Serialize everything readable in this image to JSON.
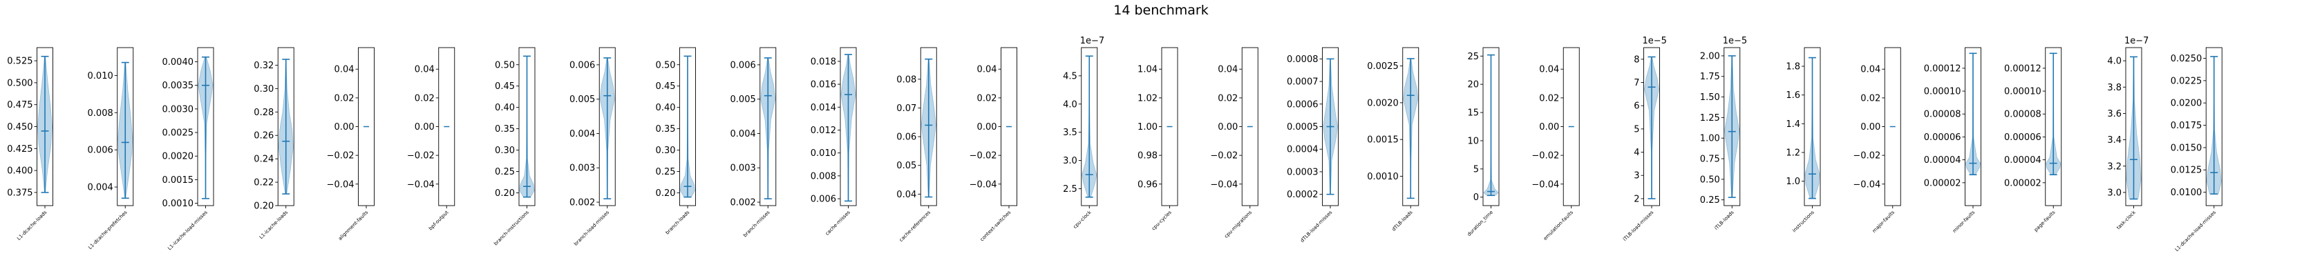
{
  "chart_data": {
    "type": "violin",
    "title": "14 benchmark",
    "colors": {
      "violin_fill": "#1f77b4",
      "line": "#1f77b4",
      "axis": "#000000"
    },
    "subplots": [
      {
        "label": "L1-dcache-loads",
        "ylim": [
          0.36,
          0.54
        ],
        "yticks": [
          "0.375",
          "0.400",
          "0.425",
          "0.450",
          "0.475",
          "0.500",
          "0.525"
        ],
        "min": 0.375,
        "max": 0.53,
        "mean": 0.445,
        "density": [
          [
            0.375,
            0.05
          ],
          [
            0.4,
            0.35
          ],
          [
            0.43,
            0.85
          ],
          [
            0.45,
            1.0
          ],
          [
            0.47,
            0.8
          ],
          [
            0.5,
            0.4
          ],
          [
            0.53,
            0.05
          ]
        ]
      },
      {
        "label": "L1-dcache-prefetches",
        "ylim": [
          0.003,
          0.0115
        ],
        "yticks": [
          "0.004",
          "0.006",
          "0.008",
          "0.010"
        ],
        "min": 0.0034,
        "max": 0.0107,
        "mean": 0.0064,
        "density": [
          [
            0.0034,
            0.05
          ],
          [
            0.0045,
            0.45
          ],
          [
            0.0058,
            0.9
          ],
          [
            0.0066,
            1.0
          ],
          [
            0.0078,
            0.75
          ],
          [
            0.0092,
            0.35
          ],
          [
            0.0107,
            0.05
          ]
        ]
      },
      {
        "label": "L1-icache-load-misses",
        "ylim": [
          0.00095,
          0.0043
        ],
        "yticks": [
          "0.0010",
          "0.0015",
          "0.0020",
          "0.0025",
          "0.0030",
          "0.0035",
          "0.0040"
        ],
        "min": 0.0011,
        "max": 0.0041,
        "mean": 0.0035,
        "density": [
          [
            0.0011,
            0.02
          ],
          [
            0.002,
            0.05
          ],
          [
            0.0027,
            0.15
          ],
          [
            0.0032,
            0.7
          ],
          [
            0.0035,
            1.0
          ],
          [
            0.0038,
            0.65
          ],
          [
            0.0041,
            0.1
          ]
        ]
      },
      {
        "label": "L1-icache-loads",
        "ylim": [
          0.2,
          0.335
        ],
        "yticks": [
          "0.20",
          "0.22",
          "0.24",
          "0.26",
          "0.28",
          "0.30",
          "0.32"
        ],
        "min": 0.21,
        "max": 0.325,
        "mean": 0.255,
        "density": [
          [
            0.21,
            0.1
          ],
          [
            0.23,
            0.6
          ],
          [
            0.25,
            1.0
          ],
          [
            0.265,
            0.85
          ],
          [
            0.28,
            0.45
          ],
          [
            0.3,
            0.15
          ],
          [
            0.325,
            0.03
          ]
        ]
      },
      {
        "label": "alignment-faults",
        "ylim": [
          -0.055,
          0.055
        ],
        "yticks": [
          "−0.04",
          "−0.02",
          "0.00",
          "0.02",
          "0.04"
        ],
        "constant": 0.0
      },
      {
        "label": "bpf-output",
        "ylim": [
          -0.055,
          0.055
        ],
        "yticks": [
          "−0.04",
          "−0.02",
          "0.00",
          "0.02",
          "0.04"
        ],
        "constant": 0.0
      },
      {
        "label": "branch-instructions",
        "ylim": [
          0.17,
          0.54
        ],
        "yticks": [
          "0.20",
          "0.25",
          "0.30",
          "0.35",
          "0.40",
          "0.45",
          "0.50"
        ],
        "min": 0.19,
        "max": 0.52,
        "mean": 0.215,
        "density": [
          [
            0.19,
            0.5
          ],
          [
            0.205,
            1.0
          ],
          [
            0.22,
            0.9
          ],
          [
            0.24,
            0.35
          ],
          [
            0.28,
            0.08
          ],
          [
            0.4,
            0.02
          ],
          [
            0.52,
            0.01
          ]
        ]
      },
      {
        "label": "branch-load-misses",
        "ylim": [
          0.0019,
          0.0065
        ],
        "yticks": [
          "0.002",
          "0.003",
          "0.004",
          "0.005",
          "0.006"
        ],
        "min": 0.0021,
        "max": 0.0062,
        "mean": 0.0051,
        "density": [
          [
            0.0021,
            0.02
          ],
          [
            0.0035,
            0.08
          ],
          [
            0.0044,
            0.4
          ],
          [
            0.005,
            1.0
          ],
          [
            0.0054,
            0.8
          ],
          [
            0.0058,
            0.35
          ],
          [
            0.0062,
            0.05
          ]
        ]
      },
      {
        "label": "branch-loads",
        "ylim": [
          0.17,
          0.54
        ],
        "yticks": [
          "0.20",
          "0.25",
          "0.30",
          "0.35",
          "0.40",
          "0.45",
          "0.50"
        ],
        "min": 0.19,
        "max": 0.52,
        "mean": 0.215,
        "density": [
          [
            0.19,
            0.5
          ],
          [
            0.205,
            1.0
          ],
          [
            0.22,
            0.9
          ],
          [
            0.24,
            0.35
          ],
          [
            0.28,
            0.08
          ],
          [
            0.4,
            0.02
          ],
          [
            0.52,
            0.01
          ]
        ]
      },
      {
        "label": "branch-misses",
        "ylim": [
          0.0019,
          0.0065
        ],
        "yticks": [
          "0.002",
          "0.003",
          "0.004",
          "0.005",
          "0.006"
        ],
        "min": 0.0021,
        "max": 0.0062,
        "mean": 0.0051,
        "density": [
          [
            0.0021,
            0.02
          ],
          [
            0.0035,
            0.08
          ],
          [
            0.0044,
            0.4
          ],
          [
            0.005,
            1.0
          ],
          [
            0.0054,
            0.8
          ],
          [
            0.0058,
            0.35
          ],
          [
            0.0062,
            0.05
          ]
        ]
      },
      {
        "label": "cache-misses",
        "ylim": [
          0.0054,
          0.0192
        ],
        "yticks": [
          "0.006",
          "0.008",
          "0.010",
          "0.012",
          "0.014",
          "0.016",
          "0.018"
        ],
        "min": 0.0058,
        "max": 0.0186,
        "mean": 0.0151,
        "density": [
          [
            0.0058,
            0.02
          ],
          [
            0.01,
            0.08
          ],
          [
            0.013,
            0.45
          ],
          [
            0.0151,
            1.0
          ],
          [
            0.0165,
            0.7
          ],
          [
            0.0176,
            0.3
          ],
          [
            0.0186,
            0.05
          ]
        ]
      },
      {
        "label": "cache-references",
        "ylim": [
          0.036,
          0.091
        ],
        "yticks": [
          "0.04",
          "0.05",
          "0.06",
          "0.07",
          "0.08"
        ],
        "min": 0.039,
        "max": 0.087,
        "mean": 0.064,
        "density": [
          [
            0.039,
            0.05
          ],
          [
            0.05,
            0.25
          ],
          [
            0.058,
            0.7
          ],
          [
            0.064,
            1.0
          ],
          [
            0.07,
            0.75
          ],
          [
            0.078,
            0.3
          ],
          [
            0.087,
            0.05
          ]
        ]
      },
      {
        "label": "context-switches",
        "ylim": [
          -0.055,
          0.055
        ],
        "yticks": [
          "−0.04",
          "−0.02",
          "0.00",
          "0.02",
          "0.04"
        ],
        "constant": 0.0
      },
      {
        "label": "cpu-clock",
        "ylim": [
          2.2,
          5.0
        ],
        "offset": "1e−7",
        "yticks": [
          "2.5",
          "3.0",
          "3.5",
          "4.0",
          "4.5"
        ],
        "min": 2.35,
        "max": 4.85,
        "mean": 2.75,
        "density": [
          [
            2.35,
            0.2
          ],
          [
            2.6,
            0.8
          ],
          [
            2.75,
            1.0
          ],
          [
            2.95,
            0.55
          ],
          [
            3.3,
            0.12
          ],
          [
            4.0,
            0.03
          ],
          [
            4.85,
            0.01
          ]
        ]
      },
      {
        "label": "cpu-cycles",
        "ylim": [
          0.945,
          1.055
        ],
        "yticks": [
          "0.96",
          "0.98",
          "1.00",
          "1.02",
          "1.04"
        ],
        "constant": 1.0
      },
      {
        "label": "cpu-migrations",
        "ylim": [
          -0.055,
          0.055
        ],
        "yticks": [
          "−0.04",
          "−0.02",
          "0.00",
          "0.02",
          "0.04"
        ],
        "constant": 0.0
      },
      {
        "label": "dTLB-load-misses",
        "ylim": [
          0.00015,
          0.00085
        ],
        "yticks": [
          "0.0002",
          "0.0003",
          "0.0004",
          "0.0005",
          "0.0006",
          "0.0007",
          "0.0008"
        ],
        "min": 0.0002,
        "max": 0.0008,
        "mean": 0.0005,
        "density": [
          [
            0.0002,
            0.03
          ],
          [
            0.00035,
            0.2
          ],
          [
            0.00045,
            0.8
          ],
          [
            0.0005,
            1.0
          ],
          [
            0.00056,
            0.7
          ],
          [
            0.00068,
            0.2
          ],
          [
            0.0008,
            0.03
          ]
        ]
      },
      {
        "label": "dTLB-loads",
        "ylim": [
          0.0006,
          0.00275
        ],
        "yticks": [
          "0.0010",
          "0.0015",
          "0.0020",
          "0.0025"
        ],
        "min": 0.0007,
        "max": 0.0026,
        "mean": 0.0021,
        "density": [
          [
            0.0007,
            0.02
          ],
          [
            0.0012,
            0.05
          ],
          [
            0.0017,
            0.2
          ],
          [
            0.00205,
            1.0
          ],
          [
            0.0022,
            0.85
          ],
          [
            0.0024,
            0.35
          ],
          [
            0.0026,
            0.05
          ]
        ]
      },
      {
        "label": "duration_time",
        "ylim": [
          -1.5,
          26.5
        ],
        "yticks": [
          "0",
          "5",
          "10",
          "15",
          "20",
          "25"
        ],
        "min": 0.3,
        "max": 25.2,
        "mean": 1.0,
        "density": [
          [
            0.3,
            0.6
          ],
          [
            0.8,
            1.0
          ],
          [
            1.5,
            0.5
          ],
          [
            3.0,
            0.08
          ],
          [
            8.0,
            0.02
          ],
          [
            25.2,
            0.01
          ]
        ]
      },
      {
        "label": "emulation-faults",
        "ylim": [
          -0.055,
          0.055
        ],
        "yticks": [
          "−0.04",
          "−0.02",
          "0.00",
          "0.02",
          "0.04"
        ],
        "constant": 0.0
      },
      {
        "label": "iTLB-load-misses",
        "ylim": [
          1.7,
          8.5
        ],
        "offset": "1e−5",
        "yticks": [
          "2",
          "3",
          "4",
          "5",
          "6",
          "7",
          "8"
        ],
        "min": 2.0,
        "max": 8.1,
        "mean": 6.8,
        "density": [
          [
            2.0,
            0.02
          ],
          [
            4.0,
            0.05
          ],
          [
            5.8,
            0.35
          ],
          [
            6.7,
            1.0
          ],
          [
            7.2,
            0.75
          ],
          [
            7.7,
            0.3
          ],
          [
            8.1,
            0.05
          ]
        ]
      },
      {
        "label": "iTLB-loads",
        "ylim": [
          0.18,
          2.1
        ],
        "offset": "1e−5",
        "yticks": [
          "0.25",
          "0.50",
          "0.75",
          "1.00",
          "1.25",
          "1.50",
          "1.75",
          "2.00"
        ],
        "min": 0.28,
        "max": 2.0,
        "mean": 1.08,
        "density": [
          [
            0.28,
            0.05
          ],
          [
            0.7,
            0.35
          ],
          [
            1.0,
            0.9
          ],
          [
            1.1,
            1.0
          ],
          [
            1.3,
            0.6
          ],
          [
            1.6,
            0.2
          ],
          [
            2.0,
            0.03
          ]
        ]
      },
      {
        "label": "instructions",
        "ylim": [
          0.83,
          1.93
        ],
        "yticks": [
          "1.0",
          "1.2",
          "1.4",
          "1.6",
          "1.8"
        ],
        "min": 0.88,
        "max": 1.86,
        "mean": 1.05,
        "density": [
          [
            0.88,
            0.3
          ],
          [
            0.98,
            0.9
          ],
          [
            1.05,
            1.0
          ],
          [
            1.15,
            0.45
          ],
          [
            1.3,
            0.1
          ],
          [
            1.6,
            0.02
          ],
          [
            1.86,
            0.01
          ]
        ]
      },
      {
        "label": "major-faults",
        "ylim": [
          -0.055,
          0.055
        ],
        "yticks": [
          "−0.04",
          "−0.02",
          "0.00",
          "0.02",
          "0.04"
        ],
        "constant": 0.0
      },
      {
        "label": "minor-faults",
        "ylim": [
          0.0,
          0.000138
        ],
        "yticks": [
          "0.00002",
          "0.00004",
          "0.00006",
          "0.00008",
          "0.00010",
          "0.00012"
        ],
        "min": 2.7e-05,
        "max": 0.000133,
        "mean": 3.7e-05,
        "density": [
          [
            2.7e-05,
            0.3
          ],
          [
            3.3e-05,
            0.9
          ],
          [
            3.7e-05,
            1.0
          ],
          [
            4.2e-05,
            0.5
          ],
          [
            6e-05,
            0.06
          ],
          [
            0.0001,
            0.02
          ],
          [
            0.000133,
            0.01
          ]
        ]
      },
      {
        "label": "page-faults",
        "ylim": [
          0.0,
          0.000138
        ],
        "yticks": [
          "0.00002",
          "0.00004",
          "0.00006",
          "0.00008",
          "0.00010",
          "0.00012"
        ],
        "min": 2.7e-05,
        "max": 0.000133,
        "mean": 3.7e-05,
        "density": [
          [
            2.7e-05,
            0.3
          ],
          [
            3.3e-05,
            0.9
          ],
          [
            3.7e-05,
            1.0
          ],
          [
            4.2e-05,
            0.5
          ],
          [
            6e-05,
            0.06
          ],
          [
            0.0001,
            0.02
          ],
          [
            0.000133,
            0.01
          ]
        ]
      },
      {
        "label": "task-clock",
        "ylim": [
          2.9,
          4.1
        ],
        "offset": "1e−7",
        "yticks": [
          "3.0",
          "3.2",
          "3.4",
          "3.6",
          "3.8",
          "4.0"
        ],
        "min": 2.95,
        "max": 4.03,
        "mean": 3.25,
        "density": [
          [
            2.95,
            0.6
          ],
          [
            3.1,
            1.0
          ],
          [
            3.25,
            0.85
          ],
          [
            3.45,
            0.4
          ],
          [
            3.7,
            0.1
          ],
          [
            4.03,
            0.02
          ]
        ]
      },
      {
        "label": "L1-dcache-load-misses",
        "ylim": [
          0.0085,
          0.0262
        ],
        "yticks": [
          "0.0100",
          "0.0125",
          "0.0150",
          "0.0175",
          "0.0200",
          "0.0225",
          "0.0250"
        ],
        "min": 0.0098,
        "max": 0.0252,
        "mean": 0.0122,
        "density": [
          [
            0.0098,
            0.6
          ],
          [
            0.0112,
            1.0
          ],
          [
            0.0125,
            0.85
          ],
          [
            0.0145,
            0.35
          ],
          [
            0.017,
            0.08
          ],
          [
            0.021,
            0.02
          ],
          [
            0.0252,
            0.01
          ]
        ]
      }
    ]
  }
}
